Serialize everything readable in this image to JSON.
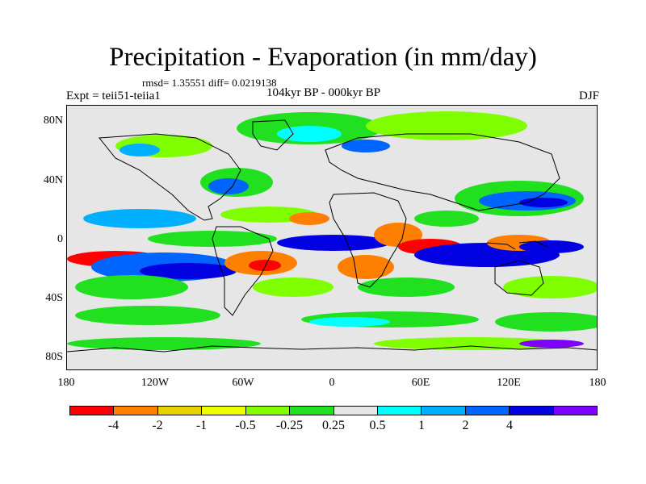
{
  "title": "Precipitation - Evaporation (in mm/day)",
  "stats": "rmsd= 1.35551 diff= 0.0219138",
  "experiment": "Expt = teii51-teiia1",
  "period": "104kyr BP - 000kyr BP",
  "season": "DJF",
  "latitude_labels": [
    "80N",
    "40N",
    "0",
    "40S",
    "80S"
  ],
  "longitude_labels": [
    "180",
    "120W",
    "60W",
    "0",
    "60E",
    "120E",
    "180"
  ],
  "colorbar": {
    "colors": [
      "#ff0000",
      "#ff8000",
      "#e6d200",
      "#f0ff00",
      "#80ff00",
      "#20e020",
      "#e6e6e6",
      "#00ffff",
      "#00b0ff",
      "#0064ff",
      "#0000e0",
      "#8000ff"
    ],
    "labels": [
      "-4",
      "-2",
      "-1",
      "-0.5",
      "-0.25",
      "0.25",
      "0.5",
      "1",
      "2",
      "4"
    ]
  },
  "colors": {
    "land_outline": "#000000",
    "background": "#e6e6e6"
  }
}
